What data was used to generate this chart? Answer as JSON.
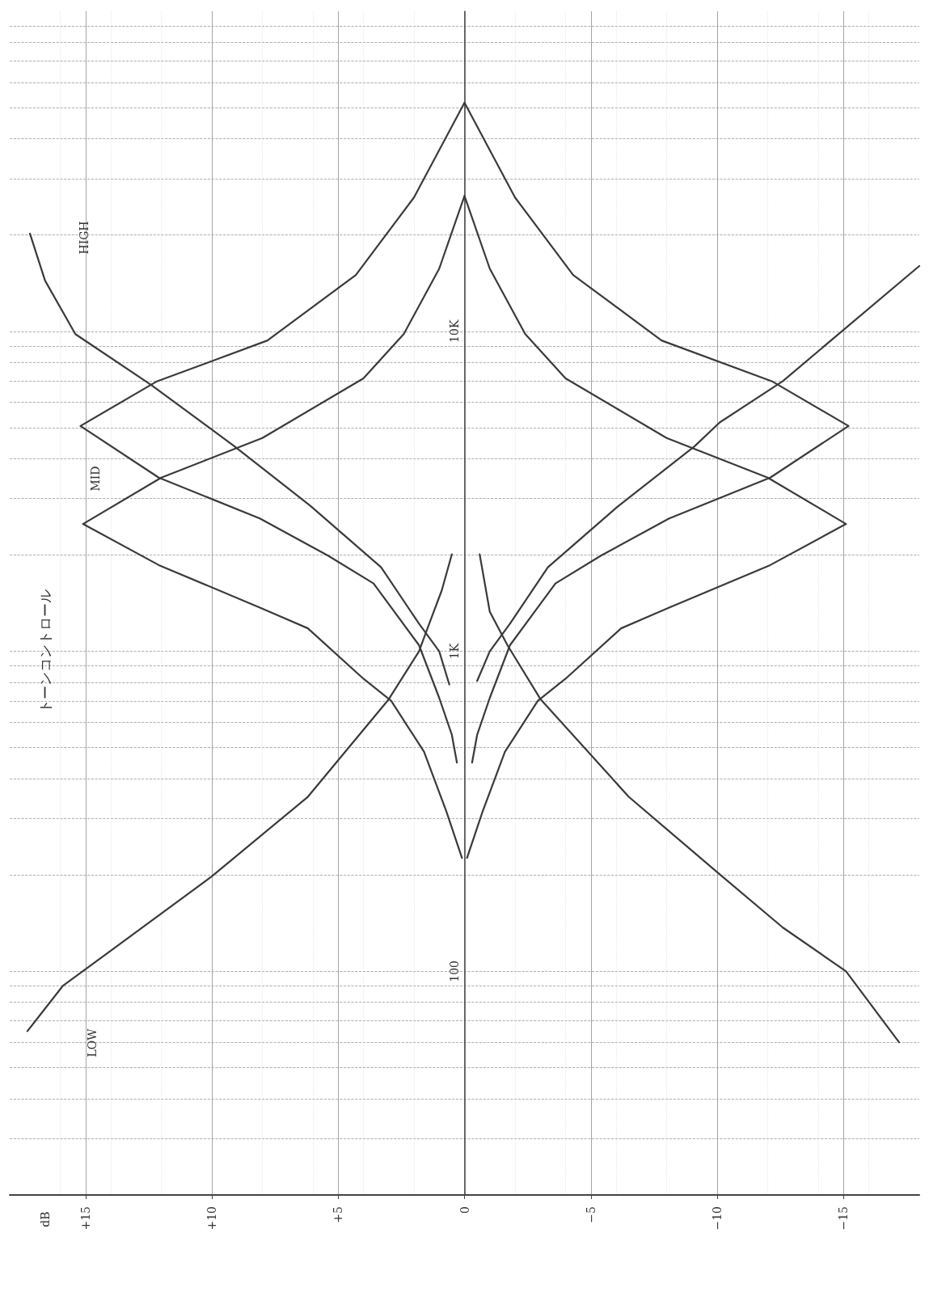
{
  "chart_data": {
    "type": "line",
    "title": "トーンコントロール",
    "log": "y",
    "grid": true,
    "marker": "none",
    "line_style": "solid",
    "xlim": [
      18,
      -18
    ],
    "ylim": [
      20,
      100000
    ],
    "xticks": [
      {
        "value": 15,
        "label": "+15"
      },
      {
        "value": 10,
        "label": "+10"
      },
      {
        "value": 5,
        "label": "+5"
      },
      0,
      {
        "value": -5,
        "label": "−5"
      },
      {
        "value": -10,
        "label": "−10"
      },
      {
        "value": -15,
        "label": "−15"
      }
    ],
    "yticks": [
      {
        "value": 30,
        "label": null
      },
      {
        "value": 40,
        "label": null
      },
      {
        "value": 50,
        "label": null
      },
      {
        "value": 60,
        "label": null
      },
      {
        "value": 70,
        "label": null
      },
      {
        "value": 80,
        "label": null
      },
      {
        "value": 90,
        "label": null
      },
      100,
      {
        "value": 200,
        "label": null
      },
      {
        "value": 300,
        "label": null
      },
      {
        "value": 400,
        "label": null
      },
      {
        "value": 500,
        "label": null
      },
      {
        "value": 600,
        "label": null
      },
      {
        "value": 700,
        "label": null
      },
      {
        "value": 800,
        "label": null
      },
      {
        "value": 900,
        "label": null
      },
      {
        "value": 1000,
        "label": "1K"
      },
      {
        "value": 2000,
        "label": null
      },
      {
        "value": 3000,
        "label": null
      },
      {
        "value": 4000,
        "label": null
      },
      {
        "value": 5000,
        "label": null
      },
      {
        "value": 6000,
        "label": null
      },
      {
        "value": 7000,
        "label": null
      },
      {
        "value": 8000,
        "label": null
      },
      {
        "value": 9000,
        "label": null
      },
      {
        "value": 10000,
        "label": "10K"
      },
      {
        "value": 20000,
        "label": null
      },
      {
        "value": 30000,
        "label": null
      },
      {
        "value": 40000,
        "label": null
      },
      {
        "value": 50000,
        "label": null
      },
      {
        "value": 60000,
        "label": null
      },
      {
        "value": 70000,
        "label": null
      },
      {
        "value": 80000,
        "label": null
      },
      {
        "value": 90000,
        "label": null
      }
    ],
    "annotations": [
      "LOW",
      "MID",
      "HIGH",
      "dB"
    ],
    "series": [
      {
        "color": "#3a3a3a",
        "x": [
          17.3,
          15.9,
          14.0,
          10.0,
          6.2,
          3.0,
          1.8,
          1.5,
          0.9,
          0.5
        ],
        "values": [
          65,
          90,
          116,
          198,
          351,
          708,
          1000,
          1160,
          1550,
          2010
        ]
      },
      {
        "color": "#3a3a3a",
        "x": [
          -17.2,
          -15.1,
          -12.6,
          -10.1,
          -6.5,
          -3.0,
          -1.7,
          -1.0,
          -0.6
        ],
        "values": [
          60,
          100,
          137,
          201,
          351,
          710,
          1045,
          1330,
          2010
        ]
      },
      {
        "color": "#3a3a3a",
        "x": [
          0.6,
          1.0,
          1.8,
          3.3,
          6.1,
          9.1,
          12.4,
          15.4,
          16.6,
          17.2
        ],
        "values": [
          787,
          1000,
          1220,
          1830,
          2850,
          4370,
          6800,
          9800,
          14400,
          20200
        ]
      },
      {
        "color": "#3a3a3a",
        "x": [
          -0.5,
          -1.0,
          -1.8,
          -3.3,
          -6.1,
          -9.1,
          -10.1,
          -12.6,
          -18.0
        ],
        "values": [
          808,
          1000,
          1220,
          1830,
          2850,
          4370,
          5190,
          6990,
          16000
        ]
      },
      {
        "color": "#3a3a3a",
        "x": [
          0.3,
          0.5,
          1.0,
          1.8,
          3.6,
          5.4,
          8.1,
          12.1,
          15.2,
          12.2,
          7.8,
          4.3,
          2.0,
          0
        ],
        "values": [
          449,
          548,
          715,
          1045,
          1630,
          1990,
          2600,
          3490,
          5060,
          6960,
          9360,
          15000,
          26200,
          51800
        ]
      },
      {
        "color": "#3a3a3a",
        "x": [
          -0.3,
          -0.5,
          -1.0,
          -1.8,
          -3.6,
          -5.4,
          -8.1,
          -12.1,
          -15.2,
          -12.2,
          -7.8,
          -4.3,
          -2.0,
          0
        ],
        "values": [
          449,
          548,
          715,
          1045,
          1630,
          1990,
          2600,
          3490,
          5060,
          6960,
          9360,
          15000,
          26200,
          51800
        ]
      },
      {
        "color": "#3a3a3a",
        "x": [
          0.1,
          0.7,
          1.6,
          2.9,
          4.0,
          6.2,
          8.1,
          12.1,
          15.1,
          12.0,
          8.0,
          4.0,
          2.4,
          1.0,
          0
        ],
        "values": [
          226,
          313,
          485,
          700,
          821,
          1180,
          1370,
          1860,
          2500,
          3490,
          4640,
          7130,
          9820,
          15700,
          26500
        ]
      },
      {
        "color": "#3a3a3a",
        "x": [
          -0.1,
          -0.7,
          -1.6,
          -2.9,
          -4.0,
          -6.2,
          -8.1,
          -12.1,
          -15.1,
          -12.0,
          -8.0,
          -4.0,
          -2.4,
          -1.0,
          0
        ],
        "values": [
          226,
          313,
          485,
          700,
          821,
          1180,
          1370,
          1860,
          2500,
          3490,
          4640,
          7130,
          9820,
          15700,
          26500
        ]
      }
    ]
  }
}
